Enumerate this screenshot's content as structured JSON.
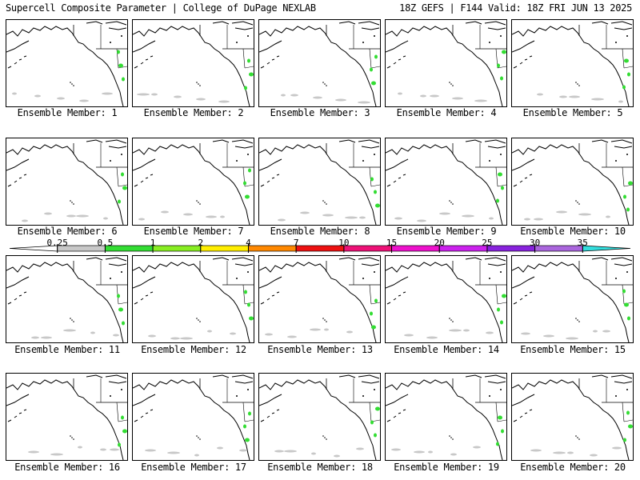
{
  "header": {
    "left": "Supercell Composite Parameter | College of DuPage NEXLAB",
    "right": "18Z GEFS | F144 Valid: 18Z FRI JUN 13 2025"
  },
  "panels": [
    {
      "label": "Ensemble Member: 1"
    },
    {
      "label": "Ensemble Member: 2"
    },
    {
      "label": "Ensemble Member: 3"
    },
    {
      "label": "Ensemble Member: 4"
    },
    {
      "label": "Ensemble Member: 5"
    },
    {
      "label": "Ensemble Member: 6"
    },
    {
      "label": "Ensemble Member: 7"
    },
    {
      "label": "Ensemble Member: 8"
    },
    {
      "label": "Ensemble Member: 9"
    },
    {
      "label": "Ensemble Member: 10"
    },
    {
      "label": "Ensemble Member: 11"
    },
    {
      "label": "Ensemble Member: 12"
    },
    {
      "label": "Ensemble Member: 13"
    },
    {
      "label": "Ensemble Member: 14"
    },
    {
      "label": "Ensemble Member: 15"
    },
    {
      "label": "Ensemble Member: 16"
    },
    {
      "label": "Ensemble Member: 17"
    },
    {
      "label": "Ensemble Member: 18"
    },
    {
      "label": "Ensemble Member: 19"
    },
    {
      "label": "Ensemble Member: 20"
    }
  ],
  "colorbar": {
    "labels": [
      "0.25",
      "0.5",
      "1",
      "2",
      "4",
      "7",
      "10",
      "15",
      "20",
      "25",
      "30",
      "35"
    ],
    "colors": [
      "#ffffff",
      "#c8c8c8",
      "#33dd33",
      "#88ee22",
      "#ffee00",
      "#ff8800",
      "#ee1111",
      "#ee1177",
      "#ee11cc",
      "#cc22ee",
      "#8822dd",
      "#aa66dd",
      "#33dddd"
    ]
  }
}
